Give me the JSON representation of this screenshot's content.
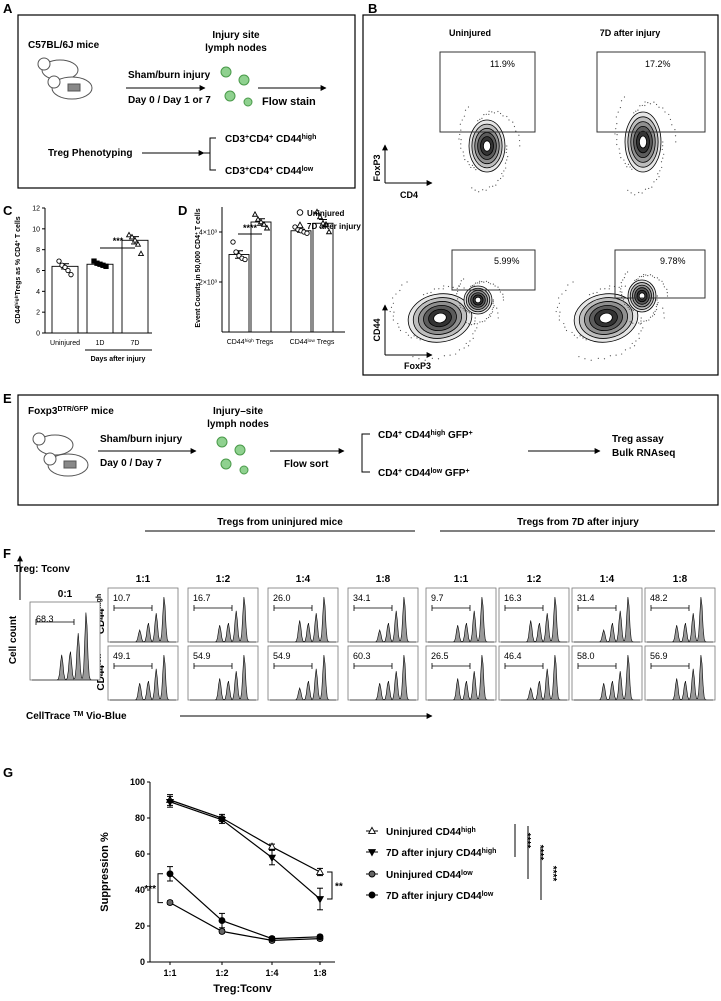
{
  "panel_labels": [
    "A",
    "B",
    "C",
    "D",
    "E",
    "F",
    "G"
  ],
  "panel_a": {
    "mice": "C57BL/6J mice",
    "injury": "Sham/burn injury",
    "days": "Day 0  /  Day 1 or 7",
    "site": [
      "Injury site",
      "lymph nodes"
    ],
    "stain": "Flow stain",
    "phenotyping": "Treg Phenotyping",
    "subsets": [
      [
        "CD3",
        "+",
        "CD4",
        "+",
        " CD44",
        "high"
      ],
      [
        "CD3",
        "+",
        "CD4",
        "+",
        " CD44",
        "low"
      ]
    ]
  },
  "panel_b": {
    "columns": [
      "Uninjured",
      "7D after injury"
    ],
    "top": {
      "y_label": "FoxP3",
      "x_label": "CD4",
      "percents": [
        "11.9%",
        "17.2%"
      ]
    },
    "bottom": {
      "y_label": "CD44",
      "x_label": "FoxP3",
      "percents": [
        "5.99%",
        "9.78%"
      ]
    }
  },
  "panel_e": {
    "mice": [
      "Foxp3",
      "DTR/GFP",
      " mice"
    ],
    "injury": "Sham/burn injury",
    "days": "Day 0  /  Day  7",
    "site": [
      "Injury–site",
      "lymph nodes"
    ],
    "sort": "Flow sort",
    "subsets": [
      [
        "CD4",
        "+",
        " CD44",
        "high",
        " GFP",
        "+"
      ],
      [
        "CD4",
        "+",
        " CD44",
        "low",
        " GFP",
        "+"
      ]
    ],
    "outputs": [
      "Treg assay",
      "Bulk RNAseq"
    ]
  },
  "panel_f": {
    "ratio_title": "Treg: Tconv",
    "control": {
      "ratio": "0:1",
      "value": "68.3"
    },
    "row_labels": [
      [
        "CD44",
        "high"
      ],
      [
        "CD44",
        "low"
      ]
    ],
    "groups": [
      {
        "title": "Tregs from uninjured mice",
        "ratios": [
          "1:1",
          "1:2",
          "1:4",
          "1:8"
        ],
        "rows": [
          [
            "10.7",
            "16.7",
            "26.0",
            "34.1"
          ],
          [
            "49.1",
            "54.9",
            "54.9",
            "60.3"
          ]
        ]
      },
      {
        "title": "Tregs from 7D after injury",
        "ratios": [
          "1:1",
          "1:2",
          "1:4",
          "1:8"
        ],
        "rows": [
          [
            "9.7",
            "16.3",
            "31.4",
            "48.2"
          ],
          [
            "26.5",
            "46.4",
            "58.0",
            "56.9"
          ]
        ]
      }
    ],
    "y_label": "Cell count",
    "x_label": [
      "CellTrace ",
      "TM",
      " Vio-Blue"
    ]
  },
  "chart_data": [
    {
      "type": "bar",
      "ylabel": [
        "CD44",
        "high",
        "Tregs as % CD4",
        "+",
        " T cells"
      ],
      "categories": [
        "Uninjured",
        "1D",
        "7D"
      ],
      "values": [
        6.4,
        6.6,
        8.9
      ],
      "errors": [
        0.25,
        0.1,
        0.35
      ],
      "points": [
        [
          6.9,
          6.5,
          6.3,
          6.0,
          5.6
        ],
        [
          6.9,
          6.7,
          6.6,
          6.5,
          6.4
        ],
        [
          9.4,
          9.2,
          8.9,
          8.5,
          7.6
        ]
      ],
      "markers": [
        "circle-open",
        "square",
        "triangle-open"
      ],
      "color": "#ffffff",
      "xlabel": "Days after injury",
      "annotations": [
        "***"
      ],
      "ylim": [
        0,
        12
      ],
      "yticks": [
        0,
        2,
        4,
        6,
        8,
        10,
        12
      ]
    },
    {
      "type": "bar",
      "ylabel": [
        "Event Counts in 50,000 CD4",
        "+",
        " T cells"
      ],
      "categories": [
        [
          "CD44",
          "high",
          " Tregs"
        ],
        [
          "CD44",
          "low",
          " Tregs"
        ]
      ],
      "series": [
        {
          "name": "Uninjured",
          "color": "#ffffff",
          "marker": "circle-open",
          "values": [
            3100,
            4050
          ],
          "errors": [
            150,
            60
          ],
          "points": [
            [
              3600,
              3200,
              3050,
              2950,
              2900
            ],
            [
              4200,
              4100,
              4050,
              4000,
              3950
            ]
          ]
        },
        {
          "name": "7D after injury",
          "color": "#ffffff",
          "marker": "triangle-open",
          "values": [
            4400,
            4350
          ],
          "errors": [
            130,
            150
          ],
          "points": [
            [
              4700,
              4500,
              4400,
              4300,
              4150
            ],
            [
              4800,
              4600,
              4350,
              4300,
              4000
            ]
          ]
        }
      ],
      "annotations": [
        "****"
      ],
      "ylim": [
        0,
        5000
      ],
      "yticks": [
        {
          "value": 2000,
          "label": "2×10³"
        },
        {
          "value": 4000,
          "label": "4×10³"
        }
      ]
    },
    {
      "type": "line",
      "ylabel": "Suppression %",
      "xlabel": "Treg:Tconv",
      "categories": [
        "1:1",
        "1:2",
        "1:4",
        "1:8"
      ],
      "series": [
        {
          "name": [
            "Uninjured CD44",
            "high"
          ],
          "color": "#000000",
          "marker": "triangle-open",
          "values": [
            90,
            80,
            64,
            50
          ],
          "errors": [
            3,
            2,
            1.5,
            2
          ]
        },
        {
          "name": [
            "7D after injury CD44",
            "high"
          ],
          "color": "#000000",
          "marker": "triangle-down",
          "values": [
            89,
            79,
            58,
            35
          ],
          "errors": [
            3,
            2,
            4,
            6
          ]
        },
        {
          "name": [
            "Uninjured CD44",
            "low"
          ],
          "color": "#000000",
          "marker": "circle-gray",
          "values": [
            33,
            17,
            12,
            13
          ],
          "errors": [
            1,
            1,
            1,
            1
          ]
        },
        {
          "name": [
            "7D after injury CD44",
            "low"
          ],
          "color": "#000000",
          "marker": "circle",
          "values": [
            49,
            23,
            13,
            14
          ],
          "errors": [
            4,
            4,
            1,
            1
          ]
        }
      ],
      "annotations": [
        "***",
        "**",
        "****",
        "****",
        "****"
      ],
      "ylim": [
        0,
        100
      ],
      "yticks": [
        0,
        20,
        40,
        60,
        80,
        100
      ]
    }
  ]
}
